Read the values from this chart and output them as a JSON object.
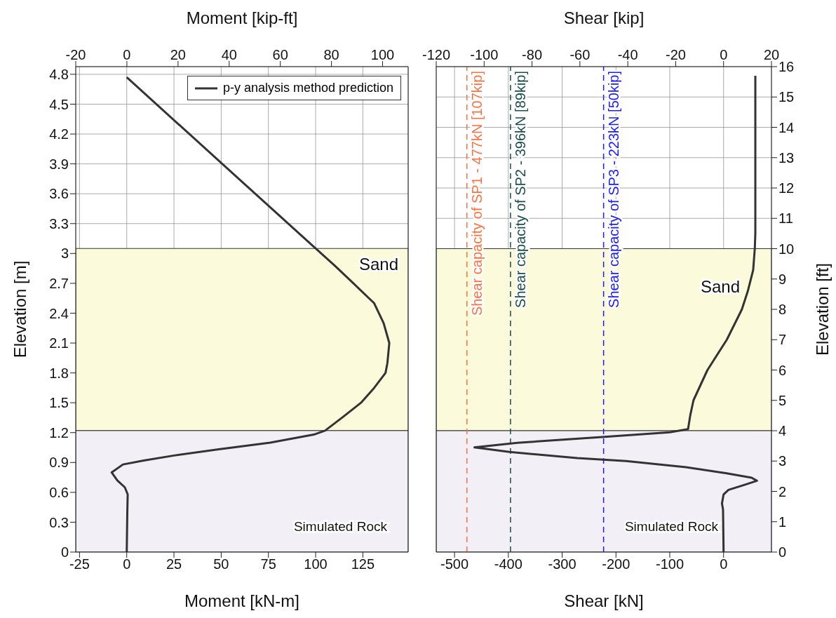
{
  "chart_data": [
    {
      "type": "line",
      "xlabel": "Moment [kN-m]",
      "x2label": "Moment [kip-ft]",
      "ylabel": "Elevation [m]",
      "xlim": [
        -27,
        149
      ],
      "xticks": [
        -25,
        0,
        25,
        50,
        75,
        100,
        125
      ],
      "x2lim": [
        -20,
        110
      ],
      "x2ticks": [
        -20,
        0,
        20,
        40,
        60,
        80,
        100
      ],
      "ylim": [
        0,
        4.877
      ],
      "yticks": [
        0,
        0.3,
        0.6,
        0.9,
        1.2,
        1.5,
        1.8,
        2.1,
        2.4,
        2.7,
        3,
        3.3,
        3.6,
        3.9,
        4.2,
        4.5,
        4.8
      ],
      "grid": true,
      "legend": "top right",
      "line_style": "solid",
      "bands": [
        {
          "axis": "y",
          "from": 1.22,
          "to": 3.05,
          "label": "Sand",
          "color": "#fbfbdc"
        },
        {
          "axis": "y",
          "from": 0,
          "to": 1.22,
          "label": "Simulated Rock",
          "color": "#f3eff6"
        }
      ],
      "series": [
        {
          "name": "p-y analysis method prediction",
          "color": "#333333",
          "x": [
            0,
            100,
            110,
            120,
            131,
            136,
            139,
            138,
            137,
            131,
            124,
            114,
            105,
            99,
            76,
            48,
            25,
            9,
            -2,
            -8,
            -5,
            -1,
            0.5,
            0.3,
            0
          ],
          "values": [
            4.77,
            3.05,
            2.88,
            2.7,
            2.5,
            2.3,
            2.1,
            1.9,
            1.8,
            1.65,
            1.5,
            1.35,
            1.22,
            1.18,
            1.1,
            1.03,
            0.97,
            0.92,
            0.88,
            0.8,
            0.72,
            0.65,
            0.58,
            0.4,
            0
          ]
        }
      ]
    },
    {
      "type": "line",
      "xlabel": "Shear [kN]",
      "x2label": "Shear [kip]",
      "y2label": "Elevation [ft]",
      "xlim": [
        -534,
        89
      ],
      "xticks": [
        -500,
        -400,
        -300,
        -200,
        -100,
        0
      ],
      "x2lim": [
        -120,
        20
      ],
      "x2ticks": [
        -120,
        -100,
        -80,
        -60,
        -40,
        -20,
        0,
        20
      ],
      "y2lim": [
        0,
        16
      ],
      "y2ticks": [
        0,
        1,
        2,
        3,
        4,
        5,
        6,
        7,
        8,
        9,
        10,
        11,
        12,
        13,
        14,
        15,
        16
      ],
      "grid": true,
      "line_style": "solid",
      "bands": [
        {
          "axis": "y2",
          "from": 4,
          "to": 10,
          "label": "Sand",
          "color": "#fbfbdc"
        },
        {
          "axis": "y2",
          "from": 0,
          "to": 4,
          "label": "Simulated Rock",
          "color": "#f3eff6"
        }
      ],
      "ref_lines": [
        {
          "axis": "x",
          "value": -477,
          "label": "Shear capacity of SP1 - 477kN [107kip]",
          "color": "#ff7040",
          "line_style": "dashed"
        },
        {
          "axis": "x",
          "value": -396,
          "label": "Shear capacity of SP2 - 396kN [89kip]",
          "color": "#1a4d4d",
          "line_style": "dashed"
        },
        {
          "axis": "x",
          "value": -223,
          "label": "Shear capacity of SP3 - 223kN [50kip]",
          "color": "#1a1aff",
          "line_style": "dashed"
        }
      ],
      "series": [
        {
          "color": "#333333",
          "axis": "y2",
          "x": [
            59,
            59,
            58,
            55,
            45,
            34,
            6,
            -30,
            -56,
            -62,
            -66,
            -100,
            -221,
            -383,
            -463,
            -398,
            -272,
            -181,
            -70,
            4,
            52,
            62,
            36,
            9,
            0,
            -3,
            -1,
            0
          ],
          "values": [
            15.7,
            10.5,
            10,
            9.3,
            8.6,
            8,
            7,
            6,
            5,
            4.5,
            4.05,
            3.95,
            3.8,
            3.6,
            3.45,
            3.3,
            3.1,
            3,
            2.8,
            2.6,
            2.45,
            2.35,
            2.2,
            2.05,
            1.9,
            1.6,
            1.4,
            0
          ]
        }
      ]
    }
  ]
}
